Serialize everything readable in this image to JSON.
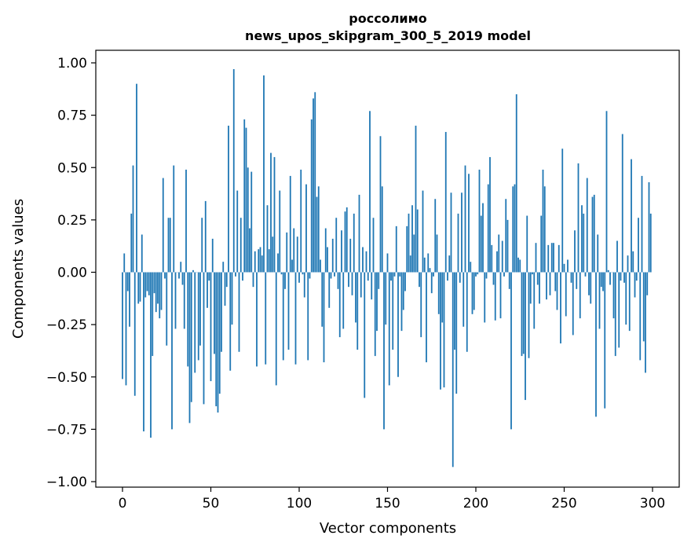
{
  "chart_data": {
    "type": "bar",
    "title": "россолимо",
    "subtitle": "news_upos_skipgram_300_5_2019 model",
    "xlabel": "Vector components",
    "ylabel": "Components values",
    "xlim": [
      -15,
      315
    ],
    "ylim": [
      -1.02,
      1.06
    ],
    "xticks": [
      0,
      50,
      100,
      150,
      200,
      250,
      300
    ],
    "xtick_labels": [
      "0",
      "50",
      "100",
      "150",
      "200",
      "250",
      "300"
    ],
    "yticks": [
      -1.0,
      -0.75,
      -0.5,
      -0.25,
      0.0,
      0.25,
      0.5,
      0.75,
      1.0
    ],
    "ytick_labels": [
      "−1.00",
      "−0.75",
      "−0.50",
      "−0.25",
      "0.00",
      "0.25",
      "0.50",
      "0.75",
      "1.00"
    ],
    "grid": false,
    "bar_color": "#1f77b4",
    "values": [
      -0.51,
      0.09,
      -0.54,
      -0.09,
      -0.26,
      0.28,
      0.51,
      -0.59,
      0.9,
      -0.15,
      -0.14,
      0.18,
      -0.76,
      -0.12,
      -0.09,
      -0.11,
      -0.79,
      -0.4,
      -0.1,
      -0.19,
      -0.15,
      -0.22,
      -0.18,
      0.45,
      -0.03,
      -0.35,
      0.26,
      0.26,
      -0.75,
      0.51,
      -0.27,
      0.0,
      -0.03,
      0.05,
      -0.06,
      -0.27,
      0.49,
      -0.45,
      -0.72,
      -0.62,
      0.01,
      -0.48,
      0.0,
      -0.42,
      -0.35,
      0.26,
      -0.63,
      0.34,
      -0.17,
      -0.04,
      -0.52,
      0.16,
      -0.39,
      -0.64,
      -0.67,
      -0.58,
      -0.38,
      0.05,
      -0.16,
      -0.07,
      0.7,
      -0.47,
      -0.25,
      0.97,
      -0.02,
      0.39,
      -0.38,
      0.26,
      -0.04,
      0.73,
      0.69,
      0.5,
      0.21,
      0.48,
      -0.07,
      0.1,
      -0.45,
      0.11,
      0.12,
      0.08,
      0.94,
      -0.44,
      0.32,
      0.11,
      0.57,
      0.17,
      0.55,
      -0.54,
      0.09,
      0.39,
      -0.01,
      -0.42,
      -0.08,
      0.19,
      -0.37,
      0.46,
      0.06,
      0.21,
      -0.44,
      0.17,
      -0.05,
      0.49,
      -0.01,
      -0.12,
      0.42,
      -0.42,
      -0.03,
      0.73,
      0.83,
      0.86,
      0.36,
      0.41,
      0.06,
      -0.26,
      -0.43,
      0.21,
      0.12,
      -0.17,
      -0.03,
      0.16,
      -0.02,
      0.26,
      -0.08,
      -0.31,
      0.2,
      -0.27,
      0.29,
      0.31,
      -0.07,
      0.16,
      -0.11,
      0.28,
      -0.24,
      -0.37,
      0.37,
      -0.12,
      0.12,
      -0.6,
      0.1,
      -0.04,
      0.77,
      -0.13,
      0.26,
      -0.4,
      -0.28,
      -0.08,
      0.65,
      0.41,
      -0.75,
      -0.25,
      0.09,
      -0.54,
      -0.04,
      -0.37,
      -0.02,
      0.22,
      -0.5,
      -0.02,
      -0.28,
      -0.18,
      -0.09,
      0.22,
      0.28,
      0.08,
      0.32,
      0.18,
      0.7,
      0.3,
      -0.07,
      -0.31,
      0.39,
      0.07,
      -0.43,
      0.09,
      0.02,
      -0.1,
      -0.02,
      0.35,
      0.18,
      -0.2,
      -0.56,
      -0.24,
      -0.55,
      0.67,
      -0.04,
      0.08,
      0.38,
      -0.93,
      -0.37,
      -0.58,
      0.28,
      -0.05,
      0.38,
      -0.26,
      0.51,
      -0.38,
      0.47,
      0.05,
      -0.2,
      -0.18,
      -0.02,
      -0.01,
      0.49,
      0.27,
      0.33,
      -0.24,
      -0.03,
      0.42,
      0.55,
      0.13,
      -0.06,
      -0.23,
      0.1,
      0.18,
      -0.22,
      0.15,
      -0.02,
      0.35,
      0.25,
      -0.08,
      -0.75,
      0.41,
      0.42,
      0.85,
      0.07,
      0.06,
      -0.4,
      -0.39,
      -0.61,
      0.27,
      -0.41,
      -0.15,
      -0.01,
      -0.27,
      0.14,
      -0.06,
      -0.15,
      0.27,
      0.49,
      0.41,
      -0.13,
      0.13,
      -0.11,
      0.14,
      0.14,
      -0.09,
      -0.18,
      0.13,
      -0.34,
      0.59,
      0.04,
      -0.21,
      0.06,
      0.0,
      -0.05,
      -0.3,
      0.2,
      -0.08,
      0.52,
      -0.22,
      0.32,
      0.28,
      -0.02,
      0.45,
      -0.11,
      -0.15,
      0.36,
      0.37,
      -0.69,
      0.18,
      -0.27,
      -0.07,
      -0.09,
      -0.65,
      0.77,
      0.01,
      -0.06,
      0.0,
      -0.22,
      -0.4,
      0.15,
      -0.36,
      -0.04,
      0.66,
      -0.05,
      -0.25,
      0.08,
      -0.28,
      0.54,
      0.1,
      -0.12,
      -0.04,
      0.26,
      -0.42,
      0.46,
      -0.33,
      -0.48,
      -0.11,
      0.43,
      0.28
    ]
  }
}
